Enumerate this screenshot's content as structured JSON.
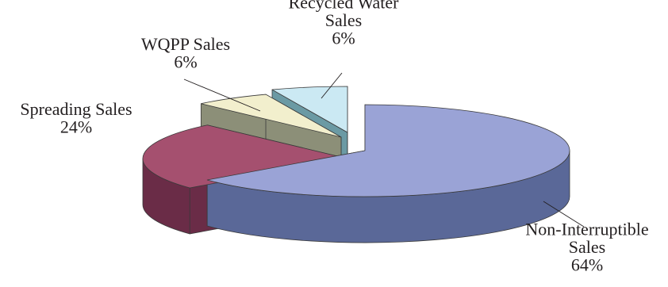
{
  "chart_data": {
    "type": "pie",
    "title": "",
    "slices": [
      {
        "name": "Non-Interruptible Sales",
        "value": 64,
        "label_lines": [
          "Non-Interruptible",
          "Sales",
          "64%"
        ],
        "color": "#9aa3d6",
        "side": "#5a6898"
      },
      {
        "name": "Spreading Sales",
        "value": 24,
        "label_lines": [
          "Spreading Sales",
          "24%"
        ],
        "color": "#a5506f",
        "side": "#6a2c47"
      },
      {
        "name": "WQPP Sales",
        "value": 6,
        "label_lines": [
          "WQPP Sales",
          "6%"
        ],
        "color": "#f2efcd",
        "side": "#8c8f78"
      },
      {
        "name": "Recycled Water Sales",
        "value": 6,
        "label_lines": [
          "Recycled Water",
          "Sales",
          "6%"
        ],
        "color": "#cbe9f3",
        "side": "#6b9aa4"
      }
    ],
    "exploded": true,
    "three_d": true,
    "legend": "none"
  }
}
